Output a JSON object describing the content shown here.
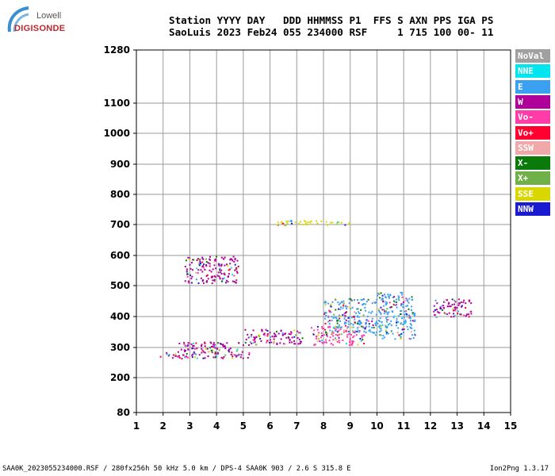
{
  "logo": {
    "brand": "Lowell",
    "name": "DIGISONDE"
  },
  "header": {
    "line1": "Station YYYY DAY   DDD HHMMSS P1  FFS S AXN PPS IGA PS",
    "line2": "SaoLuis 2023 Feb24 055 234000 RSF     1 715 100 00- 11"
  },
  "legend": [
    {
      "label": "NoVal",
      "color": "#a0a0a0"
    },
    {
      "label": "NNE",
      "color": "#00e5ee"
    },
    {
      "label": "E",
      "color": "#3ca0f0"
    },
    {
      "label": "W",
      "color": "#b0009a"
    },
    {
      "label": "Vo-",
      "color": "#ff3ca8"
    },
    {
      "label": "Vo+",
      "color": "#ff0030"
    },
    {
      "label": "SSW",
      "color": "#f0a8a8"
    },
    {
      "label": "X-",
      "color": "#0a7a0a"
    },
    {
      "label": "X+",
      "color": "#70b048"
    },
    {
      "label": "SSE",
      "color": "#d8d800"
    },
    {
      "label": "NNW",
      "color": "#1a1ad0"
    }
  ],
  "footer": {
    "left": "SAA0K_2023055234000.RSF / 280fx256h 50 kHz 5.0 km / DPS-4 SAA0K 903 / 2.6 S 315.8 E",
    "right": "Ion2Png 1.3.17"
  },
  "chart_data": {
    "type": "scatter",
    "x_ticks": [
      1,
      2,
      3,
      4,
      5,
      6,
      7,
      8,
      9,
      10,
      11,
      12,
      13,
      14,
      15
    ],
    "y_ticks": [
      80,
      200,
      300,
      400,
      500,
      600,
      700,
      800,
      900,
      1000,
      1100,
      1280
    ],
    "xlim": [
      1,
      15
    ],
    "ylim": [
      80,
      1280
    ],
    "y_scale": "nonlinear",
    "grid": true,
    "legend_position": "right",
    "traces": [
      {
        "legend_label": "W",
        "x_range": [
          1.8,
          5.2
        ],
        "y_range": [
          265,
          285
        ]
      },
      {
        "legend_label": "W",
        "x_range": [
          2.5,
          5.0
        ],
        "y_range": [
          285,
          320
        ]
      },
      {
        "legend_label": "W",
        "x_range": [
          5.0,
          7.2
        ],
        "y_range": [
          310,
          360
        ]
      },
      {
        "legend_label": "Vo-",
        "x_range": [
          7.5,
          9.5
        ],
        "y_range": [
          310,
          370
        ]
      },
      {
        "legend_label": "E",
        "x_range": [
          8.0,
          9.8
        ],
        "y_range": [
          350,
          460
        ]
      },
      {
        "legend_label": "E",
        "x_range": [
          9.8,
          11.4
        ],
        "y_range": [
          330,
          480
        ]
      },
      {
        "legend_label": "W",
        "x_range": [
          12.1,
          13.5
        ],
        "y_range": [
          400,
          460
        ]
      },
      {
        "legend_label": "W",
        "x_range": [
          2.8,
          4.8
        ],
        "y_range": [
          510,
          600
        ]
      },
      {
        "legend_label": "SSE",
        "x_range": [
          6.2,
          9.0
        ],
        "y_range": [
          700,
          715
        ]
      }
    ]
  }
}
